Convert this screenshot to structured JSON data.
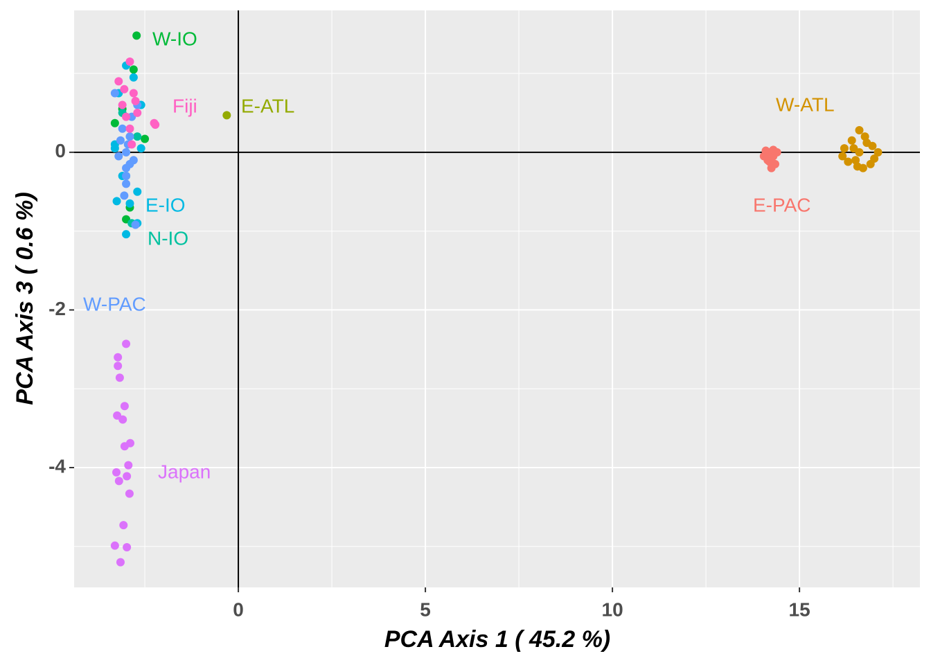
{
  "chart_data": {
    "type": "scatter",
    "xlabel": "PCA Axis 1 ( 45.2 %)",
    "ylabel": "PCA Axis 3 ( 0.6 %)",
    "xlim": [
      -4.39,
      18.22
    ],
    "ylim": [
      -5.52,
      1.8
    ],
    "xticks": [
      0,
      5,
      10,
      15
    ],
    "yticks": [
      -4,
      -2,
      0
    ],
    "xminor": [
      -2.5,
      2.5,
      7.5,
      12.5,
      17.5
    ],
    "yminor": [
      -5,
      -3,
      -1,
      1
    ],
    "hlines": [
      0
    ],
    "vlines": [
      0
    ],
    "grid": true,
    "series": [
      {
        "name": "E-PAC",
        "color": "#F8766D",
        "x": [
          14.1,
          14.2,
          14.3,
          14.15,
          14.35,
          14.25,
          14.05,
          14.4,
          14.2,
          14.3
        ],
        "y": [
          0.02,
          0.0,
          -0.05,
          -0.1,
          -0.15,
          -0.2,
          -0.05,
          0.0,
          -0.12,
          0.03
        ]
      },
      {
        "name": "W-ATL",
        "color": "#D39200",
        "x": [
          16.6,
          16.4,
          16.8,
          16.2,
          17.1,
          16.5,
          16.9,
          16.3,
          16.7,
          16.6,
          16.45,
          16.95,
          16.15,
          17.0,
          16.55,
          16.75
        ],
        "y": [
          0.28,
          0.15,
          0.12,
          0.05,
          0.0,
          -0.1,
          -0.15,
          -0.12,
          -0.2,
          0.0,
          0.05,
          0.08,
          -0.05,
          -0.08,
          -0.18,
          0.2
        ]
      },
      {
        "name": "E-ATL",
        "color": "#93AA00",
        "x": [
          -0.31
        ],
        "y": [
          0.47
        ]
      },
      {
        "name": "W-IO",
        "color": "#00BA38",
        "x": [
          -2.72,
          -3.3,
          -2.5,
          -3.0,
          -2.9,
          -3.1,
          -2.8
        ],
        "y": [
          1.48,
          0.37,
          0.17,
          -0.85,
          -0.7,
          0.55,
          1.05
        ]
      },
      {
        "name": "N-IO",
        "color": "#00C19F",
        "x": [
          -2.85,
          -3.0,
          -2.7,
          -3.1
        ],
        "y": [
          -0.9,
          -0.3,
          0.2,
          0.5
        ]
      },
      {
        "name": "E-IO",
        "color": "#00B9E3",
        "x": [
          -3.0,
          -3.25,
          -2.7,
          -3.3,
          -2.6,
          -3.0,
          -2.8,
          -3.2,
          -2.7,
          -3.1,
          -2.6,
          -3.3,
          -2.9
        ],
        "y": [
          -1.04,
          -0.62,
          -0.9,
          0.1,
          0.05,
          1.1,
          0.95,
          0.75,
          -0.5,
          -0.3,
          0.6,
          0.05,
          -0.65
        ]
      },
      {
        "name": "W-PAC",
        "color": "#619CFF",
        "x": [
          -2.75,
          -3.3,
          -3.0,
          -3.0,
          -3.0,
          -2.9,
          -3.1,
          -2.8,
          -3.2,
          -2.85,
          -3.05,
          -2.95,
          -3.15,
          -2.7,
          -3.0,
          -2.9
        ],
        "y": [
          -0.92,
          0.75,
          0.0,
          -0.2,
          -0.4,
          0.2,
          0.3,
          -0.1,
          -0.05,
          0.45,
          -0.55,
          0.1,
          0.15,
          0.6,
          -0.3,
          -0.15
        ]
      },
      {
        "name": "Japan",
        "color": "#DB72FB",
        "x": [
          -3.0,
          -3.22,
          -3.22,
          -3.17,
          -3.04,
          -3.24,
          -3.09,
          -3.04,
          -2.89,
          -2.94,
          -3.26,
          -2.98,
          -3.19,
          -2.91,
          -3.07,
          -3.3,
          -2.98,
          -3.15
        ],
        "y": [
          -2.43,
          -2.6,
          -2.71,
          -2.86,
          -3.22,
          -3.34,
          -3.39,
          -3.73,
          -3.69,
          -3.97,
          -4.06,
          -4.11,
          -4.17,
          -4.33,
          -4.73,
          -4.99,
          -5.01,
          -5.2
        ]
      },
      {
        "name": "Fiji",
        "color": "#FF61C3",
        "x": [
          -2.22,
          -2.25,
          -3.2,
          -2.9,
          -2.8,
          -3.1,
          -2.7,
          -2.9,
          -3.0,
          -2.75,
          -3.05,
          -2.85
        ],
        "y": [
          0.35,
          0.37,
          0.9,
          1.15,
          0.75,
          0.6,
          0.5,
          0.3,
          0.45,
          0.65,
          0.8,
          0.1
        ]
      }
    ]
  }
}
